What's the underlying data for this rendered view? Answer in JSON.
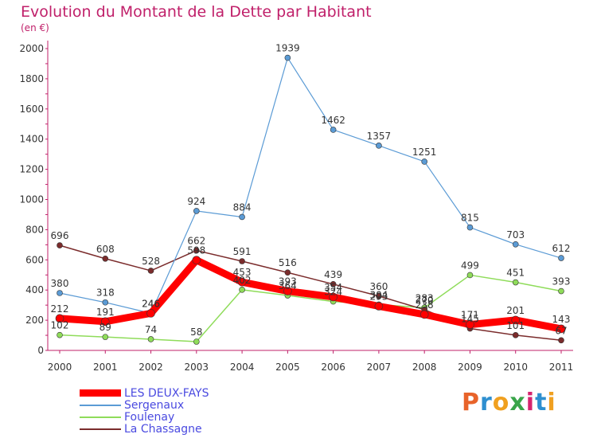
{
  "chart_data": {
    "type": "line",
    "title": "Evolution du Montant de la Dette par Habitant",
    "subtitle": "(en €)",
    "xlabel": "",
    "ylabel": "",
    "ylim": [
      0,
      2000
    ],
    "yticks": [
      "0",
      "200",
      "400",
      "600",
      "800",
      "1000",
      "1200",
      "1400",
      "1600",
      "1800",
      "2000"
    ],
    "categories": [
      "2000",
      "2001",
      "2002",
      "2003",
      "2004",
      "2005",
      "2006",
      "2007",
      "2008",
      "2009",
      "2010",
      "2011"
    ],
    "grid": false,
    "legend_position": "bottom-left",
    "series": [
      {
        "name": "LES DEUX-FAYS",
        "color": "#ff0000",
        "values": [
          212,
          191,
          246,
          598,
          453,
          393,
          354,
          293,
          238,
          171,
          201,
          143
        ],
        "labels": [
          "212",
          "191",
          "246",
          "598",
          "453",
          "393",
          "354",
          "293",
          "238",
          "171",
          "201",
          "143"
        ]
      },
      {
        "name": "Sergenaux",
        "color": "#5b9bd5",
        "values": [
          380,
          318,
          246,
          924,
          884,
          1939,
          1462,
          1357,
          1251,
          815,
          703,
          612
        ],
        "labels": [
          "380",
          "318",
          "246",
          "924",
          "884",
          "1939",
          "1462",
          "1357",
          "1251",
          "815",
          "703",
          "612"
        ]
      },
      {
        "name": "Foulenay",
        "color": "#8fdc5a",
        "values": [
          102,
          89,
          74,
          58,
          402,
          364,
          324,
          304,
          283,
          499,
          451,
          393
        ],
        "labels": [
          "102",
          "89",
          "74",
          "58",
          "402",
          "364",
          "324",
          "304",
          "283",
          "499",
          "451",
          "393"
        ]
      },
      {
        "name": "La Chassagne",
        "color": "#7b2c2c",
        "values": [
          696,
          608,
          528,
          662,
          591,
          516,
          439,
          360,
          270,
          145,
          101,
          67
        ],
        "labels": [
          "696",
          "608",
          "528",
          "662",
          "591",
          "516",
          "439",
          "360",
          "270",
          "145",
          "101",
          "67"
        ]
      }
    ]
  },
  "logo": {
    "text": "Proxiti",
    "colors": [
      "#e8632a",
      "#2e8fd0",
      "#f0a020",
      "#3aa54a",
      "#d6246e",
      "#2e8fd0",
      "#f0a020"
    ]
  }
}
